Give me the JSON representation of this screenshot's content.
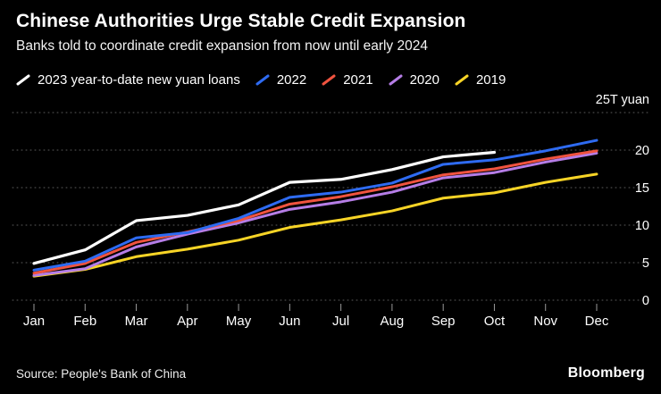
{
  "header": {
    "title": "Chinese Authorities Urge Stable Credit Expansion",
    "subtitle": "Banks told to coordinate credit expansion from now until early 2024"
  },
  "legend": {
    "items": [
      {
        "label": "2023 year-to-date new yuan loans",
        "color": "#ffffff"
      },
      {
        "label": "2022",
        "color": "#2e6bf2"
      },
      {
        "label": "2021",
        "color": "#f0533f"
      },
      {
        "label": "2020",
        "color": "#b57de6"
      },
      {
        "label": "2019",
        "color": "#f7d426"
      }
    ]
  },
  "chart_data": {
    "type": "line",
    "title": "Chinese Authorities Urge Stable Credit Expansion",
    "unit_label": "25T yuan",
    "categories": [
      "Jan",
      "Feb",
      "Mar",
      "Apr",
      "May",
      "Jun",
      "Jul",
      "Aug",
      "Sep",
      "Oct",
      "Nov",
      "Dec"
    ],
    "y_ticks": [
      0,
      5,
      10,
      15,
      20
    ],
    "ylim": [
      0,
      25
    ],
    "grid": "dotted-horizontal",
    "legend_position": "top",
    "series": [
      {
        "name": "2023 year-to-date new yuan loans",
        "color": "#ffffff",
        "values": [
          4.9,
          6.7,
          10.6,
          11.3,
          12.7,
          15.7,
          16.1,
          17.4,
          19.1,
          19.7
        ]
      },
      {
        "name": "2022",
        "color": "#2e6bf2",
        "values": [
          4.0,
          5.2,
          8.3,
          9.0,
          10.9,
          13.7,
          14.4,
          15.6,
          18.1,
          18.7,
          19.9,
          21.3
        ]
      },
      {
        "name": "2021",
        "color": "#f0533f",
        "values": [
          3.6,
          4.9,
          7.7,
          9.1,
          10.6,
          12.8,
          13.8,
          15.1,
          16.7,
          17.5,
          18.8,
          19.9
        ]
      },
      {
        "name": "2020",
        "color": "#b57de6",
        "values": [
          3.3,
          4.2,
          7.1,
          8.8,
          10.3,
          12.1,
          13.1,
          14.4,
          16.3,
          17.0,
          18.4,
          19.6
        ]
      },
      {
        "name": "2019",
        "color": "#f7d426",
        "values": [
          3.2,
          4.1,
          5.8,
          6.8,
          8.0,
          9.7,
          10.7,
          11.9,
          13.6,
          14.3,
          15.7,
          16.8
        ]
      }
    ]
  },
  "footer": {
    "source": "Source: People's Bank of China",
    "brand": "Bloomberg"
  }
}
